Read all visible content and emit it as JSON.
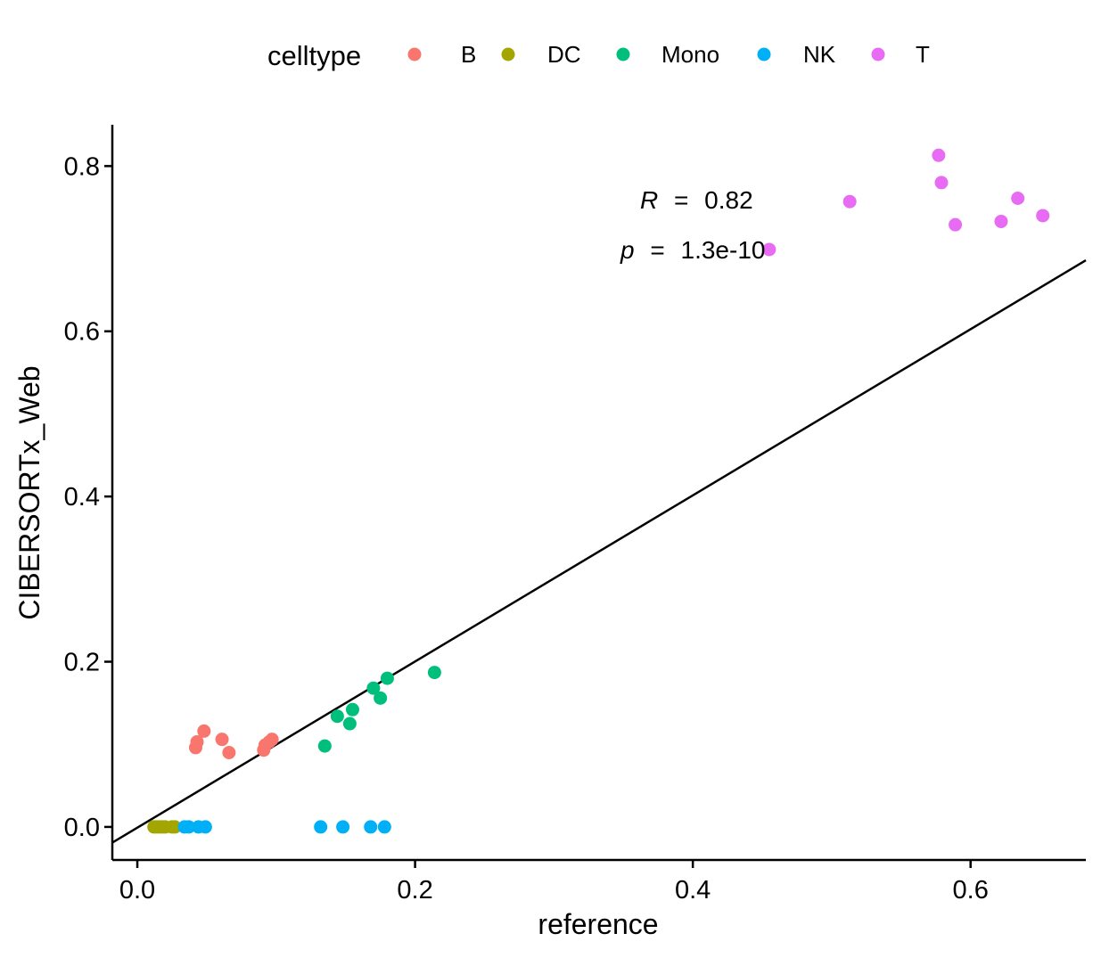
{
  "chart_data": {
    "type": "scatter",
    "xlabel": "reference",
    "ylabel": "CIBERSORTx_Web",
    "xlim": [
      -0.018,
      0.683
    ],
    "ylim": [
      -0.04,
      0.85
    ],
    "x_ticks": [
      "0.0",
      "0.2",
      "0.4",
      "0.6"
    ],
    "x_tick_values": [
      0.0,
      0.2,
      0.4,
      0.6
    ],
    "y_ticks": [
      "0.0",
      "0.2",
      "0.4",
      "0.6",
      "0.8"
    ],
    "y_tick_values": [
      0.0,
      0.2,
      0.4,
      0.6,
      0.8
    ],
    "grid": false,
    "legend": {
      "title": "celltype",
      "position": "top"
    },
    "series": [
      {
        "name": "B",
        "color": "#F8766D",
        "points": [
          [
            0.042,
            0.096
          ],
          [
            0.043,
            0.103
          ],
          [
            0.048,
            0.116
          ],
          [
            0.061,
            0.106
          ],
          [
            0.066,
            0.09
          ],
          [
            0.091,
            0.093
          ],
          [
            0.092,
            0.099
          ],
          [
            0.095,
            0.103
          ],
          [
            0.097,
            0.106
          ]
        ]
      },
      {
        "name": "DC",
        "color": "#A3A500",
        "points": [
          [
            0.012,
            0.0
          ],
          [
            0.014,
            0.0
          ],
          [
            0.016,
            0.0
          ],
          [
            0.018,
            0.0
          ],
          [
            0.02,
            0.0
          ],
          [
            0.025,
            0.0
          ],
          [
            0.027,
            0.0
          ]
        ]
      },
      {
        "name": "Mono",
        "color": "#00BF7D",
        "points": [
          [
            0.135,
            0.098
          ],
          [
            0.144,
            0.134
          ],
          [
            0.153,
            0.125
          ],
          [
            0.155,
            0.142
          ],
          [
            0.17,
            0.168
          ],
          [
            0.175,
            0.156
          ],
          [
            0.18,
            0.18
          ],
          [
            0.214,
            0.187
          ]
        ]
      },
      {
        "name": "NK",
        "color": "#00B0F6",
        "points": [
          [
            0.034,
            0.0
          ],
          [
            0.037,
            0.0
          ],
          [
            0.044,
            0.0
          ],
          [
            0.049,
            0.0
          ],
          [
            0.132,
            0.0
          ],
          [
            0.148,
            0.0
          ],
          [
            0.168,
            0.0
          ],
          [
            0.178,
            0.0
          ]
        ]
      },
      {
        "name": "T",
        "color": "#E76BF3",
        "points": [
          [
            0.455,
            0.699
          ],
          [
            0.513,
            0.757
          ],
          [
            0.577,
            0.813
          ],
          [
            0.579,
            0.78
          ],
          [
            0.589,
            0.729
          ],
          [
            0.622,
            0.733
          ],
          [
            0.634,
            0.761
          ],
          [
            0.652,
            0.74
          ]
        ]
      }
    ],
    "regression_line": {
      "color": "#000000",
      "x": [
        -0.018,
        0.683
      ],
      "y": [
        -0.019,
        0.686
      ]
    },
    "annotations": {
      "r_symbol": "R",
      "r_eq": "=",
      "r_value": "0.82",
      "p_symbol": "p",
      "p_eq": "=",
      "p_value": "1.3e-10"
    }
  }
}
